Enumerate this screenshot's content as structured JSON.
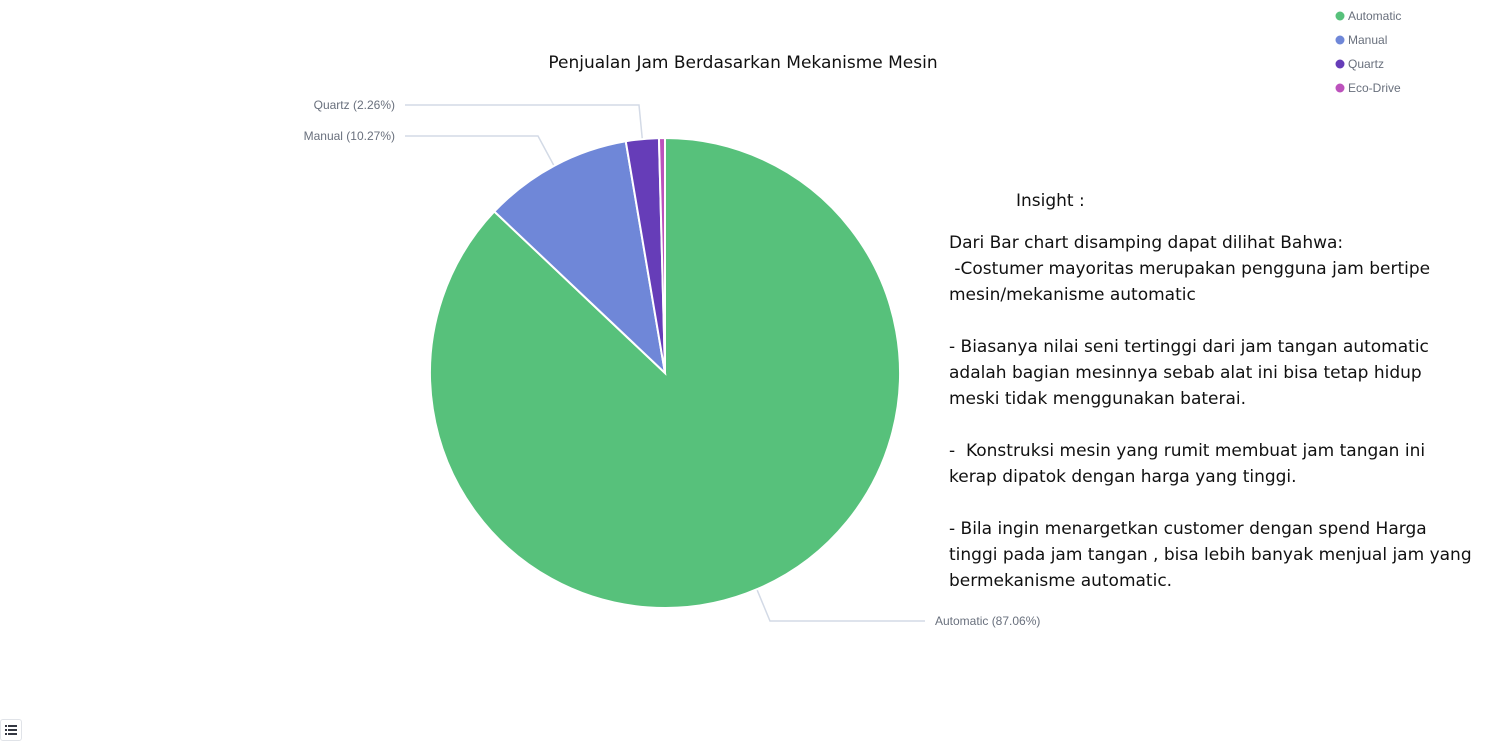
{
  "chart_data": {
    "type": "pie",
    "title": "Penjualan Jam Berdasarkan Mekanisme Mesin",
    "slices": [
      {
        "name": "Automatic",
        "percent": 87.06,
        "label": "Automatic (87.06%)",
        "color": "#57c17b"
      },
      {
        "name": "Manual",
        "percent": 10.27,
        "label": "Manual (10.27%)",
        "color": "#6f87d8"
      },
      {
        "name": "Quartz",
        "percent": 2.26,
        "label": "Quartz (2.26%)",
        "color": "#663db8"
      },
      {
        "name": "Eco-Drive",
        "percent": 0.41,
        "label": "",
        "color": "#bc52bc"
      }
    ],
    "legend": {
      "position": "top-right",
      "items": [
        "Automatic",
        "Manual",
        "Quartz",
        "Eco-Drive"
      ]
    },
    "start_angle": "top",
    "direction": "clockwise"
  },
  "insight": {
    "heading": "Insight :",
    "lines": [
      "Dari Bar chart disamping dapat dilihat Bahwa:",
      " -Costumer mayoritas merupakan pengguna jam bertipe",
      "mesin/mekanisme automatic",
      "",
      "- Biasanya nilai seni tertinggi dari jam tangan automatic",
      "adalah bagian mesinnya sebab alat ini bisa tetap hidup",
      "meski tidak menggunakan baterai.",
      "",
      "-  Konstruksi mesin yang rumit membuat jam tangan ini",
      "kerap dipatok dengan harga yang tinggi.",
      "",
      "- Bila ingin menargetkan customer dengan spend Harga",
      "tinggi pada jam tangan , bisa lebih banyak menjual jam yang",
      "bermekanisme automatic."
    ]
  },
  "icons": {
    "legend_toggle": "list-icon"
  }
}
